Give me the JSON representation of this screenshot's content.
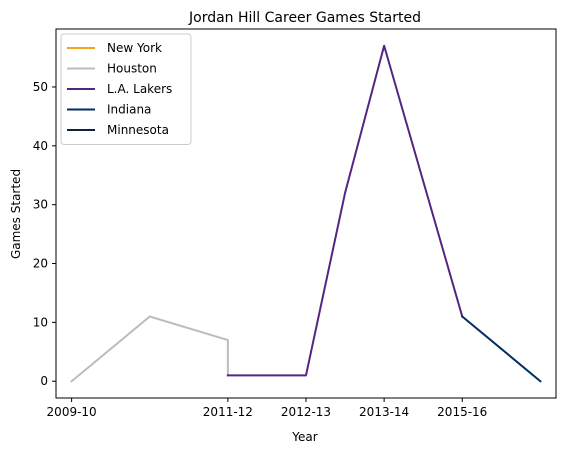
{
  "chart_data": {
    "type": "line",
    "title": "Jordan Hill  Career Games Started",
    "xlabel": "Year",
    "ylabel": "Games Started",
    "x_tick_labels": [
      "2009-10",
      "2011-12",
      "2012-13",
      "2013-14",
      "2015-16"
    ],
    "x_tick_positions": [
      0,
      2,
      3,
      4,
      5
    ],
    "xlim": [
      -0.2,
      6.2
    ],
    "ylim": [
      -2.85,
      59.85
    ],
    "y_ticks": [
      0,
      10,
      20,
      30,
      40,
      50
    ],
    "grid": false,
    "legend_position": "top-left",
    "series": [
      {
        "name": "New York",
        "color": "#F7A21B",
        "points": [
          [
            0,
            0
          ]
        ]
      },
      {
        "name": "Houston",
        "color": "#BCBCBC",
        "points": [
          [
            0,
            0
          ],
          [
            1,
            11
          ],
          [
            2,
            7
          ],
          [
            2,
            1
          ]
        ]
      },
      {
        "name": "L.A. Lakers",
        "color": "#552583",
        "points": [
          [
            2,
            1
          ],
          [
            3,
            1
          ],
          [
            3.5,
            32
          ],
          [
            4,
            57
          ],
          [
            5,
            11
          ]
        ]
      },
      {
        "name": "Indiana",
        "color": "#002D62",
        "points": [
          [
            5,
            11
          ],
          [
            6,
            0
          ]
        ]
      },
      {
        "name": "Minnesota",
        "color": "#0C2340",
        "points": []
      }
    ]
  }
}
